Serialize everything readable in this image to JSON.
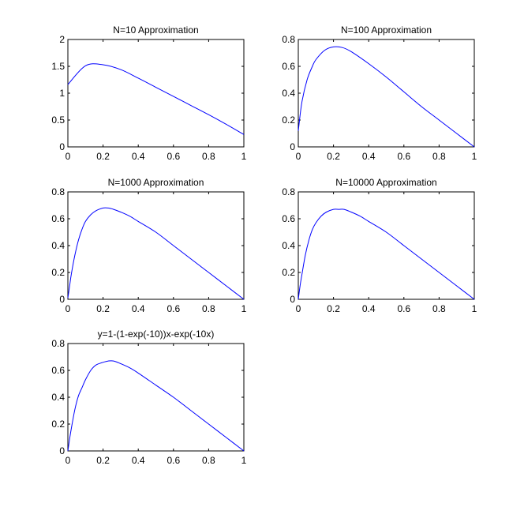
{
  "chart_data": [
    {
      "type": "line",
      "title": "N=10 Approximation",
      "xlim": [
        0,
        1
      ],
      "ylim": [
        0,
        2
      ],
      "xticks": [
        "0",
        "0.2",
        "0.4",
        "0.6",
        "0.8",
        "1"
      ],
      "yticks": [
        "0",
        "0.5",
        "1",
        "1.5",
        "2"
      ],
      "series": [
        {
          "color": "#0000ff",
          "x": [
            0,
            0.1,
            0.2,
            0.3,
            0.4,
            0.5,
            0.6,
            0.7,
            0.8,
            0.9,
            1.0
          ],
          "y": [
            1.16,
            1.51,
            1.53,
            1.44,
            1.28,
            1.11,
            0.94,
            0.77,
            0.6,
            0.42,
            0.23
          ]
        }
      ]
    },
    {
      "type": "line",
      "title": "N=100 Approximation",
      "xlim": [
        0,
        1
      ],
      "ylim": [
        0,
        0.8
      ],
      "xticks": [
        "0",
        "0.2",
        "0.4",
        "0.6",
        "0.8",
        "1"
      ],
      "yticks": [
        "0",
        "0.2",
        "0.4",
        "0.6",
        "0.8"
      ],
      "series": [
        {
          "color": "#0000ff",
          "x": [
            0,
            0.02,
            0.05,
            0.08,
            0.1,
            0.15,
            0.2,
            0.25,
            0.3,
            0.4,
            0.5,
            0.6,
            0.7,
            0.8,
            0.9,
            1.0
          ],
          "y": [
            0.12,
            0.33,
            0.5,
            0.6,
            0.65,
            0.72,
            0.745,
            0.74,
            0.71,
            0.62,
            0.52,
            0.41,
            0.3,
            0.2,
            0.1,
            0.0
          ]
        }
      ]
    },
    {
      "type": "line",
      "title": "N=1000 Approximation",
      "xlim": [
        0,
        1
      ],
      "ylim": [
        0,
        0.8
      ],
      "xticks": [
        "0",
        "0.2",
        "0.4",
        "0.6",
        "0.8",
        "1"
      ],
      "yticks": [
        "0",
        "0.2",
        "0.4",
        "0.6",
        "0.8"
      ],
      "series": [
        {
          "color": "#0000ff",
          "x": [
            0,
            0.01,
            0.02,
            0.04,
            0.06,
            0.08,
            0.1,
            0.13,
            0.16,
            0.2,
            0.23,
            0.26,
            0.3,
            0.35,
            0.4,
            0.5,
            0.6,
            0.7,
            0.8,
            0.9,
            1.0
          ],
          "y": [
            0.01,
            0.1,
            0.19,
            0.33,
            0.44,
            0.52,
            0.58,
            0.63,
            0.66,
            0.68,
            0.68,
            0.67,
            0.65,
            0.62,
            0.58,
            0.5,
            0.4,
            0.3,
            0.2,
            0.1,
            0.0
          ]
        }
      ]
    },
    {
      "type": "line",
      "title": "N=10000 Approximation",
      "xlim": [
        0,
        1
      ],
      "ylim": [
        0,
        0.8
      ],
      "xticks": [
        "0",
        "0.2",
        "0.4",
        "0.6",
        "0.8",
        "1"
      ],
      "yticks": [
        "0",
        "0.2",
        "0.4",
        "0.6",
        "0.8"
      ],
      "series": [
        {
          "color": "#0000ff",
          "x": [
            0,
            0.01,
            0.02,
            0.04,
            0.06,
            0.08,
            0.1,
            0.13,
            0.16,
            0.2,
            0.23,
            0.26,
            0.3,
            0.35,
            0.4,
            0.5,
            0.6,
            0.7,
            0.8,
            0.9,
            1.0
          ],
          "y": [
            0.0,
            0.1,
            0.18,
            0.33,
            0.44,
            0.52,
            0.57,
            0.62,
            0.65,
            0.67,
            0.67,
            0.67,
            0.65,
            0.62,
            0.58,
            0.5,
            0.4,
            0.3,
            0.2,
            0.1,
            0.0
          ]
        }
      ]
    },
    {
      "type": "line",
      "title": "y=1-(1-exp(-10))x-exp(-10x)",
      "xlim": [
        0,
        1
      ],
      "ylim": [
        0,
        0.8
      ],
      "xticks": [
        "0",
        "0.2",
        "0.4",
        "0.6",
        "0.8",
        "1"
      ],
      "yticks": [
        "0",
        "0.2",
        "0.4",
        "0.6",
        "0.8"
      ],
      "series": [
        {
          "color": "#0000ff",
          "x": [
            0,
            0.01,
            0.02,
            0.04,
            0.06,
            0.08,
            0.1,
            0.13,
            0.16,
            0.2,
            0.23,
            0.26,
            0.3,
            0.35,
            0.4,
            0.5,
            0.6,
            0.7,
            0.8,
            0.9,
            1.0
          ],
          "y": [
            0.0,
            0.09,
            0.17,
            0.31,
            0.41,
            0.47,
            0.53,
            0.6,
            0.64,
            0.66,
            0.67,
            0.67,
            0.65,
            0.62,
            0.58,
            0.49,
            0.4,
            0.3,
            0.2,
            0.1,
            0.0
          ]
        }
      ]
    }
  ]
}
